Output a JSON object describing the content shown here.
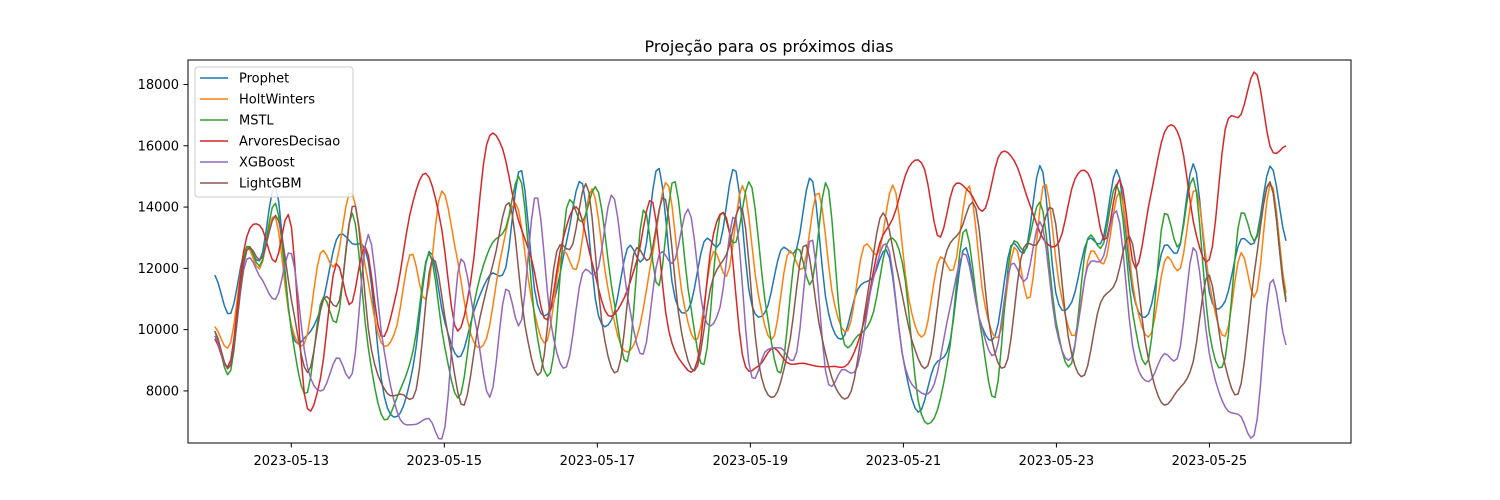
{
  "chart_data": {
    "type": "line",
    "title": "Projeção para os próximos dias",
    "xlabel": "",
    "ylabel": "",
    "x_start": "2023-05-12",
    "x_end": "2023-05-26",
    "xlim": [
      "2023-05-11T15:36",
      "2023-05-26T20:24"
    ],
    "ylim": [
      6300,
      18800
    ],
    "x_ticks": [
      "2023-05-13",
      "2023-05-15",
      "2023-05-17",
      "2023-05-19",
      "2023-05-21",
      "2023-05-23",
      "2023-05-25"
    ],
    "y_ticks": [
      8000,
      10000,
      12000,
      14000,
      16000,
      18000
    ],
    "y_tick_labels": [
      "8000",
      "10000",
      "12000",
      "14000",
      "16000",
      "18000"
    ],
    "grid": false,
    "legend_position": "upper-left",
    "series": [
      {
        "name": "Prophet",
        "color": "#1f77b4",
        "values": [
          11780,
          10500,
          12650,
          12300,
          14650,
          10000,
          9800,
          10800,
          13000,
          12800,
          12300,
          8000,
          7200,
          8900,
          12550,
          10300,
          9100,
          10700,
          11800,
          12000,
          15250,
          11000,
          10700,
          12900,
          14800,
          10600,
          10400,
          12700,
          12300,
          15300,
          11200,
          10700,
          12900,
          12800,
          15250,
          11000,
          10600,
          12600,
          12600,
          14950,
          10800,
          9700,
          11300,
          11700,
          12500,
          9000,
          7300,
          8800,
          9500,
          12700,
          10300,
          9800,
          12700,
          12600,
          15350,
          11100,
          10900,
          12900,
          12900,
          15200,
          11200,
          10500,
          12700,
          12600,
          15400,
          11200,
          10900,
          12900,
          12900,
          15350,
          12900
        ]
      },
      {
        "name": "HoltWinters",
        "color": "#ff7f0e",
        "values": [
          10100,
          9500,
          12600,
          12000,
          13700,
          10300,
          9600,
          12500,
          12100,
          14500,
          12000,
          9600,
          10000,
          12500,
          11000,
          14500,
          12500,
          9800,
          9700,
          12500,
          14100,
          11000,
          9600,
          12500,
          12000,
          14600,
          11500,
          9400,
          9800,
          12400,
          14800,
          11100,
          9700,
          12500,
          11800,
          14700,
          11200,
          9700,
          12500,
          12000,
          14500,
          11000,
          10000,
          12700,
          12500,
          14700,
          11000,
          9800,
          12300,
          12000,
          14700,
          10900,
          9800,
          12700,
          11000,
          14800,
          11400,
          9800,
          12500,
          12200,
          14500,
          11000,
          9800,
          12300,
          12000,
          14600,
          11300,
          9800,
          12500,
          11100,
          14800,
          11200
        ]
      },
      {
        "name": "MSTL",
        "color": "#2ca02c",
        "values": [
          9950,
          8600,
          12600,
          12100,
          14100,
          10000,
          7900,
          11000,
          10300,
          13800,
          9500,
          7100,
          7900,
          9400,
          12500,
          9500,
          7800,
          11000,
          12700,
          13300,
          14900,
          10000,
          8700,
          14000,
          13500,
          14600,
          11200,
          9000,
          13900,
          11400,
          14900,
          11100,
          8900,
          13700,
          12800,
          14800,
          10800,
          8600,
          12600,
          11500,
          14800,
          9800,
          9800,
          10500,
          12900,
          12000,
          7600,
          7100,
          9300,
          13300,
          10200,
          7800,
          12600,
          12600,
          14100,
          10200,
          8900,
          12900,
          12700,
          14700,
          10500,
          9000,
          13700,
          12700,
          14900,
          9900,
          9000,
          13700,
          12900,
          14800,
          11000
        ]
      },
      {
        "name": "ArvoresDecisao",
        "color": "#d62728",
        "values": [
          9700,
          8900,
          12800,
          13400,
          12200,
          13600,
          7700,
          8400,
          12100,
          10800,
          12700,
          9800,
          11100,
          13900,
          15100,
          13400,
          10000,
          11700,
          16000,
          16000,
          13800,
          12300,
          10300,
          12800,
          14000,
          12200,
          10500,
          10900,
          12300,
          14200,
          10200,
          8900,
          9000,
          13000,
          13500,
          9100,
          8800,
          9400,
          8900,
          8900,
          8800,
          8800,
          8900,
          10200,
          12700,
          13700,
          15300,
          15300,
          13000,
          14700,
          14500,
          13900,
          15700,
          15500,
          14100,
          12900,
          12900,
          14900,
          15000,
          12900,
          14900,
          12000,
          14300,
          16500,
          16200,
          13200,
          12400,
          16600,
          17000,
          18400,
          15900,
          16000
        ]
      },
      {
        "name": "XGBoost",
        "color": "#9467bd",
        "values": [
          9800,
          8800,
          12200,
          11700,
          11000,
          12500,
          8900,
          8000,
          9100,
          8600,
          13100,
          9500,
          7200,
          6900,
          7100,
          6700,
          12200,
          10300,
          7800,
          11300,
          10200,
          14400,
          10100,
          8800,
          11800,
          11900,
          14400,
          11000,
          9200,
          12400,
          12200,
          13900,
          10400,
          10700,
          13700,
          8600,
          9300,
          9400,
          9200,
          13000,
          8400,
          8700,
          8800,
          11600,
          12700,
          9000,
          8000,
          8200,
          10600,
          12500,
          10300,
          9200,
          12100,
          11600,
          13500,
          10000,
          9100,
          12000,
          12300,
          13800,
          9400,
          8300,
          9200,
          9200,
          12700,
          9200,
          7500,
          7200,
          6700,
          11600,
          9500
        ]
      },
      {
        "name": "LightGBM",
        "color": "#8c564b",
        "values": [
          9950,
          8800,
          12500,
          12300,
          13700,
          10800,
          8600,
          11000,
          10900,
          14100,
          9600,
          8000,
          7900,
          8100,
          12300,
          9900,
          7500,
          10200,
          12300,
          14100,
          10100,
          8600,
          12500,
          12700,
          14700,
          10000,
          8700,
          12500,
          12300,
          14300,
          10100,
          8700,
          11500,
          12500,
          13900,
          9000,
          7800,
          9500,
          12800,
          10000,
          8100,
          8000,
          11000,
          13800,
          11800,
          9500,
          8900,
          12300,
          13200,
          14000,
          9800,
          8900,
          12500,
          12800,
          13900,
          9700,
          8500,
          10800,
          11500,
          13000,
          9400,
          7600,
          8000,
          8900,
          11800,
          9000,
          8000,
          12000,
          14800,
          10900
        ]
      }
    ]
  }
}
